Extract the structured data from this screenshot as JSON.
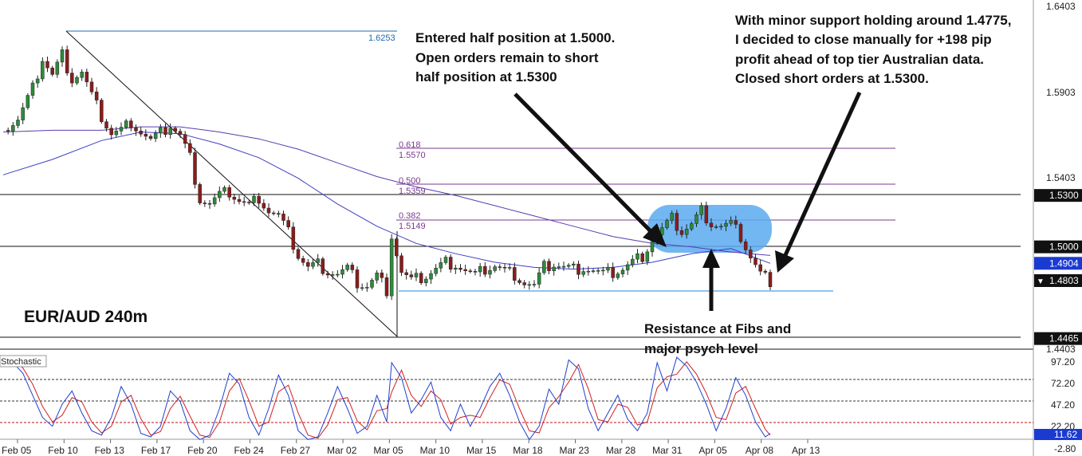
{
  "chart_data": {
    "type": "candlestick",
    "symbol_label": "EUR/AUD 240m",
    "price_axis": {
      "range": [
        1.4403,
        1.6403
      ],
      "ticks": [
        "1.6403",
        "1.5903",
        "1.5403",
        "1.4403"
      ]
    },
    "x_labels": [
      "Feb 05",
      "Feb 10",
      "Feb 13",
      "Feb 17",
      "Feb 20",
      "Feb 24",
      "Feb 27",
      "Mar 02",
      "Mar 05",
      "Mar 10",
      "Mar 15",
      "Mar 18",
      "Mar 23",
      "Mar 28",
      "Mar 31",
      "Apr 05",
      "Apr 08",
      "Apr 13"
    ],
    "price_badges": [
      {
        "label": "1.5300",
        "value": 1.53,
        "style": "dark"
      },
      {
        "label": "1.5000",
        "value": 1.5,
        "style": "dark"
      },
      {
        "label": "1.4904",
        "value": 1.4904,
        "style": "blue"
      },
      {
        "label": "1.4803",
        "value": 1.4803,
        "style": "current"
      },
      {
        "label": "1.4465",
        "value": 1.4465,
        "style": "dark"
      }
    ],
    "horizontal_lines": [
      1.53,
      1.5,
      1.4465
    ],
    "support_line": 1.4775,
    "fib_levels": [
      {
        "ratio": "0.618",
        "price": "1.5570",
        "value": 1.557
      },
      {
        "ratio": "0.500",
        "price": "1.5359",
        "value": 1.5359
      },
      {
        "ratio": "0.382",
        "price": "1.5149",
        "value": 1.5149
      }
    ],
    "swing_high": {
      "label": "1.6253",
      "value": 1.6253
    },
    "swing_low": {
      "value": 1.4465
    },
    "close_path": [
      [
        0,
        1.568
      ],
      [
        3,
        1.574
      ],
      [
        6,
        1.592
      ],
      [
        8,
        1.61
      ],
      [
        10,
        1.6
      ],
      [
        12,
        1.612
      ],
      [
        14,
        1.598
      ],
      [
        16,
        1.602
      ],
      [
        18,
        1.588
      ],
      [
        20,
        1.576
      ],
      [
        22,
        1.566
      ],
      [
        24,
        1.568
      ],
      [
        26,
        1.573
      ],
      [
        28,
        1.567
      ],
      [
        30,
        1.562
      ],
      [
        32,
        1.566
      ],
      [
        34,
        1.571
      ],
      [
        36,
        1.565
      ],
      [
        38,
        1.552
      ],
      [
        40,
        1.528
      ],
      [
        42,
        1.525
      ],
      [
        44,
        1.53
      ],
      [
        46,
        1.532
      ],
      [
        48,
        1.527
      ],
      [
        50,
        1.524
      ],
      [
        52,
        1.529
      ],
      [
        54,
        1.521
      ],
      [
        56,
        1.518
      ],
      [
        58,
        1.508
      ],
      [
        60,
        1.495
      ],
      [
        62,
        1.488
      ],
      [
        64,
        1.49
      ],
      [
        66,
        1.486
      ],
      [
        68,
        1.484
      ],
      [
        70,
        1.487
      ],
      [
        72,
        1.479
      ],
      [
        74,
        1.477
      ],
      [
        76,
        1.483
      ],
      [
        78,
        1.475
      ],
      [
        79,
        1.507
      ],
      [
        81,
        1.485
      ],
      [
        83,
        1.48
      ],
      [
        86,
        1.483
      ],
      [
        88,
        1.487
      ],
      [
        90,
        1.491
      ],
      [
        92,
        1.49
      ],
      [
        94,
        1.486
      ],
      [
        96,
        1.483
      ],
      [
        98,
        1.487
      ],
      [
        100,
        1.489
      ],
      [
        102,
        1.486
      ],
      [
        104,
        1.484
      ],
      [
        106,
        1.479
      ],
      [
        108,
        1.477
      ],
      [
        110,
        1.488
      ],
      [
        112,
        1.49
      ],
      [
        114,
        1.488
      ],
      [
        116,
        1.487
      ],
      [
        118,
        1.488
      ],
      [
        120,
        1.486
      ],
      [
        122,
        1.484
      ],
      [
        124,
        1.485
      ],
      [
        126,
        1.487
      ],
      [
        128,
        1.491
      ],
      [
        130,
        1.495
      ],
      [
        132,
        1.504
      ],
      [
        134,
        1.51
      ],
      [
        136,
        1.516
      ],
      [
        138,
        1.509
      ],
      [
        140,
        1.513
      ],
      [
        142,
        1.521
      ],
      [
        144,
        1.514
      ],
      [
        146,
        1.512
      ],
      [
        148,
        1.513
      ],
      [
        150,
        1.506
      ],
      [
        152,
        1.494
      ],
      [
        154,
        1.484
      ],
      [
        156,
        1.4803
      ]
    ],
    "ma_fast": [
      [
        0,
        1.542
      ],
      [
        10,
        1.551
      ],
      [
        20,
        1.562
      ],
      [
        28,
        1.567
      ],
      [
        36,
        1.566
      ],
      [
        44,
        1.56
      ],
      [
        52,
        1.552
      ],
      [
        60,
        1.54
      ],
      [
        68,
        1.525
      ],
      [
        76,
        1.512
      ],
      [
        84,
        1.502
      ],
      [
        92,
        1.496
      ],
      [
        100,
        1.491
      ],
      [
        108,
        1.488
      ],
      [
        116,
        1.487
      ],
      [
        124,
        1.488
      ],
      [
        132,
        1.491
      ],
      [
        140,
        1.496
      ],
      [
        148,
        1.499
      ],
      [
        156,
        1.4904
      ]
    ],
    "ma_slow": [
      [
        0,
        1.567
      ],
      [
        10,
        1.568
      ],
      [
        20,
        1.568
      ],
      [
        28,
        1.57
      ],
      [
        36,
        1.57
      ],
      [
        44,
        1.567
      ],
      [
        52,
        1.563
      ],
      [
        60,
        1.557
      ],
      [
        68,
        1.549
      ],
      [
        76,
        1.541
      ],
      [
        84,
        1.535
      ],
      [
        92,
        1.53
      ],
      [
        100,
        1.524
      ],
      [
        108,
        1.518
      ],
      [
        116,
        1.512
      ],
      [
        124,
        1.506
      ],
      [
        132,
        1.502
      ],
      [
        140,
        1.5
      ],
      [
        148,
        1.497
      ],
      [
        156,
        1.495
      ]
    ],
    "stochastic": {
      "label": "Stochastic",
      "range": [
        -2.8,
        100
      ],
      "ticks": [
        "97.20",
        "72.20",
        "47.20",
        "22.20",
        "-2.80"
      ],
      "current": "11.62",
      "upper_band": 80,
      "mid_band": 50,
      "lower_band": 20,
      "k_line": [
        [
          0,
          95
        ],
        [
          2,
          92
        ],
        [
          4,
          80
        ],
        [
          6,
          55
        ],
        [
          8,
          30
        ],
        [
          10,
          20
        ],
        [
          12,
          45
        ],
        [
          14,
          60
        ],
        [
          16,
          35
        ],
        [
          18,
          15
        ],
        [
          20,
          10
        ],
        [
          22,
          30
        ],
        [
          24,
          65
        ],
        [
          26,
          45
        ],
        [
          28,
          12
        ],
        [
          30,
          8
        ],
        [
          32,
          20
        ],
        [
          34,
          60
        ],
        [
          36,
          48
        ],
        [
          38,
          15
        ],
        [
          40,
          5
        ],
        [
          42,
          10
        ],
        [
          44,
          40
        ],
        [
          46,
          80
        ],
        [
          48,
          68
        ],
        [
          50,
          30
        ],
        [
          52,
          10
        ],
        [
          54,
          40
        ],
        [
          56,
          78
        ],
        [
          58,
          55
        ],
        [
          60,
          15
        ],
        [
          62,
          5
        ],
        [
          64,
          8
        ],
        [
          66,
          35
        ],
        [
          68,
          65
        ],
        [
          70,
          40
        ],
        [
          72,
          12
        ],
        [
          74,
          20
        ],
        [
          76,
          55
        ],
        [
          78,
          25
        ],
        [
          79,
          92
        ],
        [
          81,
          75
        ],
        [
          83,
          35
        ],
        [
          85,
          50
        ],
        [
          87,
          70
        ],
        [
          89,
          30
        ],
        [
          91,
          15
        ],
        [
          93,
          45
        ],
        [
          95,
          20
        ],
        [
          97,
          40
        ],
        [
          99,
          65
        ],
        [
          101,
          80
        ],
        [
          103,
          55
        ],
        [
          105,
          25
        ],
        [
          107,
          5
        ],
        [
          109,
          20
        ],
        [
          111,
          62
        ],
        [
          113,
          45
        ],
        [
          115,
          95
        ],
        [
          117,
          85
        ],
        [
          119,
          40
        ],
        [
          121,
          15
        ],
        [
          123,
          35
        ],
        [
          125,
          55
        ],
        [
          127,
          28
        ],
        [
          129,
          15
        ],
        [
          131,
          35
        ],
        [
          133,
          92
        ],
        [
          135,
          60
        ],
        [
          137,
          98
        ],
        [
          139,
          88
        ],
        [
          141,
          70
        ],
        [
          143,
          45
        ],
        [
          145,
          15
        ],
        [
          147,
          40
        ],
        [
          149,
          75
        ],
        [
          151,
          55
        ],
        [
          153,
          25
        ],
        [
          155,
          8
        ],
        [
          156,
          12
        ]
      ]
    }
  },
  "annotations": {
    "entry": [
      "Entered half position at 1.5000.",
      "Open orders remain to short",
      "half position at 1.5300"
    ],
    "exit": [
      "With minor support holding around 1.4775,",
      "I decided to close manually for +198 pip",
      "profit ahead of top tier Australian data.",
      "Closed short orders at 1.5300."
    ],
    "resistance": [
      "Resistance at Fibs and",
      "major psych level"
    ]
  },
  "colors": {
    "bull": "#2e8b3a",
    "bear": "#8b1c1c",
    "ma_fast": "#3d3dc8",
    "ma_slow": "#5a3ab0",
    "fib": "#7a3a8f",
    "swing": "#1e6ab0",
    "support": "#8fc4ee",
    "highlight": "#5aaaf0",
    "stoch_k": "#2040d0",
    "stoch_d": "#d02020"
  }
}
